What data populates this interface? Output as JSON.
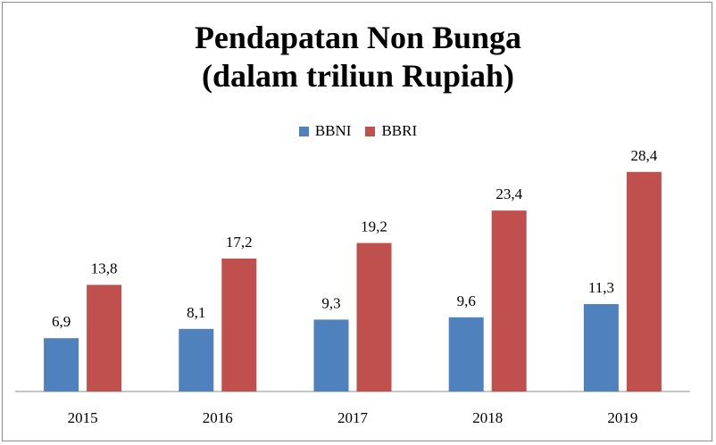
{
  "chart_data": {
    "type": "bar",
    "title_lines": [
      "Pendapatan Non Bunga",
      "(dalam triliun Rupiah)"
    ],
    "categories": [
      "2015",
      "2016",
      "2017",
      "2018",
      "2019"
    ],
    "series": [
      {
        "name": "BBNI",
        "color": "#4f81bd",
        "values": [
          6.9,
          8.1,
          9.3,
          9.6,
          11.3
        ],
        "labels": [
          "6,9",
          "8,1",
          "9,3",
          "9,6",
          "11,3"
        ]
      },
      {
        "name": "BBRI",
        "color": "#c0504d",
        "values": [
          13.8,
          17.2,
          19.2,
          23.4,
          28.4
        ],
        "labels": [
          "13,8",
          "17,2",
          "19,2",
          "23,4",
          "28,4"
        ]
      }
    ],
    "xlabel": "",
    "ylabel": "",
    "ylim": [
      0,
      30
    ],
    "grid": false,
    "legend_position": "top",
    "axis_color": "#8c8c8c"
  }
}
